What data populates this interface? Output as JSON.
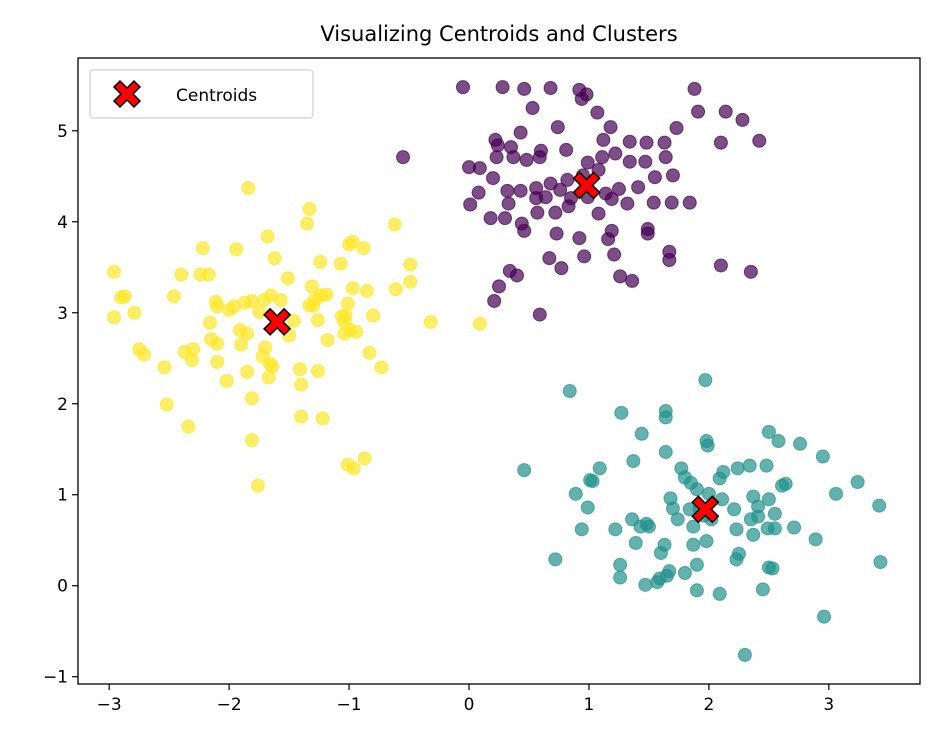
{
  "chart_data": {
    "type": "scatter",
    "title": "Visualizing Centroids and Clusters",
    "xlabel": "",
    "ylabel": "",
    "xlim": [
      -3.26,
      3.76
    ],
    "ylim": [
      -1.08,
      5.8
    ],
    "xticks": [
      -3,
      -2,
      -1,
      0,
      1,
      2,
      3
    ],
    "yticks": [
      -1,
      0,
      1,
      2,
      3,
      4,
      5
    ],
    "xtick_labels": [
      "−3",
      "−2",
      "−1",
      "0",
      "1",
      "2",
      "3"
    ],
    "ytick_labels": [
      "−1",
      "0",
      "1",
      "2",
      "3",
      "4",
      "5"
    ],
    "grid": false,
    "legend": {
      "position": "top-left",
      "entries": [
        "Centroids"
      ]
    },
    "colors": {
      "cluster_0": "#440154",
      "cluster_1": "#21918c",
      "cluster_2": "#fde725",
      "centroid": "#ff0000"
    },
    "point_alpha": 0.7,
    "series": [
      {
        "name": "cluster_0",
        "color": "#440154",
        "points": [
          [
            -0.05,
            5.48
          ],
          [
            0.28,
            5.48
          ],
          [
            0.68,
            5.47
          ],
          [
            0.92,
            5.45
          ],
          [
            0.46,
            5.46
          ],
          [
            0.98,
            5.4
          ],
          [
            1.88,
            5.46
          ],
          [
            0.94,
            5.35
          ],
          [
            0.53,
            5.25
          ],
          [
            1.07,
            5.2
          ],
          [
            1.91,
            5.21
          ],
          [
            2.14,
            5.21
          ],
          [
            2.28,
            5.12
          ],
          [
            1.18,
            5.04
          ],
          [
            0.74,
            5.04
          ],
          [
            0.43,
            4.98
          ],
          [
            0.22,
            4.9
          ],
          [
            0.24,
            4.84
          ],
          [
            0.35,
            4.82
          ],
          [
            0.6,
            4.78
          ],
          [
            1.12,
            4.9
          ],
          [
            1.34,
            4.88
          ],
          [
            1.48,
            4.87
          ],
          [
            1.63,
            4.87
          ],
          [
            2.42,
            4.89
          ],
          [
            2.1,
            4.87
          ],
          [
            1.73,
            5.03
          ],
          [
            -0.55,
            4.71
          ],
          [
            0.0,
            4.6
          ],
          [
            0.09,
            4.59
          ],
          [
            0.23,
            4.71
          ],
          [
            0.37,
            4.71
          ],
          [
            0.48,
            4.68
          ],
          [
            0.59,
            4.71
          ],
          [
            0.81,
            4.79
          ],
          [
            0.99,
            4.65
          ],
          [
            1.11,
            4.71
          ],
          [
            1.22,
            4.75
          ],
          [
            1.34,
            4.66
          ],
          [
            1.47,
            4.66
          ],
          [
            1.64,
            4.71
          ],
          [
            1.08,
            4.57
          ],
          [
            0.95,
            4.51
          ],
          [
            0.82,
            4.46
          ],
          [
            0.68,
            4.42
          ],
          [
            0.56,
            4.37
          ],
          [
            0.43,
            4.34
          ],
          [
            0.32,
            4.34
          ],
          [
            0.2,
            4.48
          ],
          [
            0.08,
            4.32
          ],
          [
            0.33,
            4.2
          ],
          [
            0.56,
            4.26
          ],
          [
            0.64,
            4.27
          ],
          [
            0.76,
            4.35
          ],
          [
            0.85,
            4.26
          ],
          [
            0.99,
            4.27
          ],
          [
            1.14,
            4.31
          ],
          [
            1.25,
            4.36
          ],
          [
            1.41,
            4.38
          ],
          [
            1.55,
            4.49
          ],
          [
            1.7,
            4.51
          ],
          [
            1.84,
            4.21
          ],
          [
            1.69,
            4.21
          ],
          [
            1.54,
            4.21
          ],
          [
            1.32,
            4.2
          ],
          [
            1.19,
            4.25
          ],
          [
            1.08,
            4.09
          ],
          [
            0.83,
            4.17
          ],
          [
            0.72,
            4.1
          ],
          [
            0.57,
            4.1
          ],
          [
            0.44,
            3.98
          ],
          [
            0.46,
            3.9
          ],
          [
            0.18,
            4.04
          ],
          [
            0.3,
            4.04
          ],
          [
            0.01,
            4.19
          ],
          [
            0.73,
            3.87
          ],
          [
            0.92,
            3.82
          ],
          [
            1.16,
            3.81
          ],
          [
            1.19,
            3.9
          ],
          [
            1.49,
            3.92
          ],
          [
            1.49,
            3.87
          ],
          [
            1.67,
            3.67
          ],
          [
            1.67,
            3.58
          ],
          [
            1.21,
            3.64
          ],
          [
            0.96,
            3.62
          ],
          [
            0.67,
            3.6
          ],
          [
            0.77,
            3.49
          ],
          [
            2.1,
            3.52
          ],
          [
            2.35,
            3.45
          ],
          [
            0.34,
            3.46
          ],
          [
            0.4,
            3.41
          ],
          [
            0.25,
            3.29
          ],
          [
            0.21,
            3.13
          ],
          [
            0.59,
            2.98
          ],
          [
            1.26,
            3.4
          ],
          [
            1.36,
            3.35
          ]
        ]
      },
      {
        "name": "cluster_1",
        "color": "#21918c",
        "points": [
          [
            0.84,
            2.14
          ],
          [
            1.97,
            2.26
          ],
          [
            1.27,
            1.9
          ],
          [
            1.64,
            1.92
          ],
          [
            1.64,
            1.85
          ],
          [
            1.98,
            1.59
          ],
          [
            1.99,
            1.54
          ],
          [
            2.5,
            1.69
          ],
          [
            2.58,
            1.59
          ],
          [
            2.76,
            1.56
          ],
          [
            2.95,
            1.42
          ],
          [
            3.24,
            1.14
          ],
          [
            3.42,
            0.88
          ],
          [
            3.06,
            1.01
          ],
          [
            0.46,
            1.27
          ],
          [
            1.44,
            1.67
          ],
          [
            1.37,
            1.37
          ],
          [
            1.64,
            1.47
          ],
          [
            1.09,
            1.29
          ],
          [
            1.01,
            1.16
          ],
          [
            0.89,
            1.01
          ],
          [
            0.99,
            0.86
          ],
          [
            1.03,
            1.15
          ],
          [
            0.94,
            0.62
          ],
          [
            0.72,
            0.29
          ],
          [
            1.22,
            0.62
          ],
          [
            1.36,
            0.73
          ],
          [
            1.39,
            0.47
          ],
          [
            1.48,
            0.68
          ],
          [
            1.5,
            0.65
          ],
          [
            1.77,
            1.29
          ],
          [
            1.8,
            1.19
          ],
          [
            1.85,
            1.13
          ],
          [
            1.9,
            1.06
          ],
          [
            2.09,
            1.18
          ],
          [
            2.12,
            1.25
          ],
          [
            2.24,
            1.29
          ],
          [
            2.34,
            1.32
          ],
          [
            2.48,
            1.32
          ],
          [
            2.61,
            1.1
          ],
          [
            2.64,
            1.12
          ],
          [
            2.37,
            0.98
          ],
          [
            2.41,
            0.87
          ],
          [
            2.41,
            0.76
          ],
          [
            2.35,
            0.73
          ],
          [
            2.5,
            0.95
          ],
          [
            2.55,
            0.79
          ],
          [
            2.49,
            0.63
          ],
          [
            2.55,
            0.63
          ],
          [
            2.71,
            0.64
          ],
          [
            2.89,
            0.51
          ],
          [
            2.0,
            1.01
          ],
          [
            1.92,
            0.85
          ],
          [
            1.96,
            0.77
          ],
          [
            2.02,
            0.73
          ],
          [
            2.11,
            0.95
          ],
          [
            2.21,
            0.84
          ],
          [
            2.23,
            0.62
          ],
          [
            2.25,
            0.35
          ],
          [
            2.23,
            0.29
          ],
          [
            2.37,
            0.56
          ],
          [
            2.5,
            0.2
          ],
          [
            2.53,
            0.19
          ],
          [
            2.45,
            -0.04
          ],
          [
            1.7,
            0.85
          ],
          [
            1.74,
            0.73
          ],
          [
            1.84,
            0.84
          ],
          [
            1.87,
            0.65
          ],
          [
            1.63,
            0.45
          ],
          [
            1.67,
            0.16
          ],
          [
            1.8,
            0.14
          ],
          [
            1.9,
            0.23
          ],
          [
            1.65,
            0.11
          ],
          [
            1.57,
            0.04
          ],
          [
            1.47,
            0.01
          ],
          [
            1.59,
            0.08
          ],
          [
            1.26,
            0.09
          ],
          [
            1.9,
            -0.05
          ],
          [
            2.09,
            -0.09
          ],
          [
            2.96,
            -0.34
          ],
          [
            3.43,
            0.26
          ],
          [
            2.3,
            -0.76
          ],
          [
            1.68,
            0.96
          ],
          [
            1.98,
            0.49
          ],
          [
            1.6,
            0.36
          ],
          [
            1.43,
            0.65
          ],
          [
            1.26,
            0.23
          ],
          [
            1.87,
            0.45
          ]
        ]
      },
      {
        "name": "cluster_2",
        "color": "#fde725",
        "points": [
          [
            -2.96,
            3.45
          ],
          [
            -2.9,
            3.17
          ],
          [
            -2.87,
            3.18
          ],
          [
            -2.79,
            3.0
          ],
          [
            -2.96,
            2.95
          ],
          [
            -2.4,
            3.42
          ],
          [
            -2.46,
            3.18
          ],
          [
            -2.75,
            2.6
          ],
          [
            -2.71,
            2.54
          ],
          [
            -2.54,
            2.4
          ],
          [
            -2.52,
            1.99
          ],
          [
            -2.34,
            1.75
          ],
          [
            -2.37,
            2.57
          ],
          [
            -2.31,
            2.48
          ],
          [
            -2.3,
            2.6
          ],
          [
            -2.24,
            3.42
          ],
          [
            -2.22,
            3.71
          ],
          [
            -2.17,
            3.42
          ],
          [
            -2.11,
            3.12
          ],
          [
            -2.1,
            3.07
          ],
          [
            -2.16,
            2.89
          ],
          [
            -2.15,
            2.71
          ],
          [
            -2.1,
            2.66
          ],
          [
            -2.1,
            2.46
          ],
          [
            -2.02,
            2.25
          ],
          [
            -2.0,
            3.03
          ],
          [
            -1.96,
            3.07
          ],
          [
            -1.94,
            3.7
          ],
          [
            -1.9,
            2.65
          ],
          [
            -1.91,
            2.81
          ],
          [
            -1.87,
            3.11
          ],
          [
            -1.84,
            4.37
          ],
          [
            -1.81,
            3.13
          ],
          [
            -1.85,
            2.77
          ],
          [
            -1.85,
            2.35
          ],
          [
            -1.81,
            2.06
          ],
          [
            -1.81,
            1.6
          ],
          [
            -1.76,
            1.1
          ],
          [
            -1.72,
            2.52
          ],
          [
            -1.75,
            3.01
          ],
          [
            -1.7,
            2.62
          ],
          [
            -1.68,
            3.84
          ],
          [
            -1.71,
            3.14
          ],
          [
            -1.66,
            2.44
          ],
          [
            -1.67,
            2.29
          ],
          [
            -1.64,
            2.41
          ],
          [
            -1.65,
            3.19
          ],
          [
            -1.62,
            3.6
          ],
          [
            -1.57,
            3.14
          ],
          [
            -1.51,
            3.38
          ],
          [
            -1.46,
            2.91
          ],
          [
            -1.5,
            2.75
          ],
          [
            -1.41,
            2.38
          ],
          [
            -1.4,
            2.21
          ],
          [
            -1.4,
            1.86
          ],
          [
            -1.33,
            3.08
          ],
          [
            -1.35,
            3.98
          ],
          [
            -1.33,
            4.14
          ],
          [
            -1.31,
            3.29
          ],
          [
            -1.28,
            3.15
          ],
          [
            -1.26,
            2.92
          ],
          [
            -1.3,
            3.08
          ],
          [
            -1.23,
            3.19
          ],
          [
            -1.26,
            2.36
          ],
          [
            -1.24,
            3.56
          ],
          [
            -1.22,
            1.84
          ],
          [
            -1.19,
            3.2
          ],
          [
            -1.18,
            2.7
          ],
          [
            -1.07,
            3.54
          ],
          [
            -1.06,
            2.96
          ],
          [
            -1.04,
            2.9
          ],
          [
            -1.04,
            2.77
          ],
          [
            -1.03,
            2.97
          ],
          [
            -1.01,
            3.1
          ],
          [
            -1.0,
            3.75
          ],
          [
            -0.97,
            3.78
          ],
          [
            -1.01,
            1.33
          ],
          [
            -0.96,
            1.29
          ],
          [
            -0.97,
            3.27
          ],
          [
            -0.94,
            2.79
          ],
          [
            -0.87,
            1.4
          ],
          [
            -0.88,
            3.71
          ],
          [
            -0.85,
            3.24
          ],
          [
            -0.83,
            2.56
          ],
          [
            -0.8,
            2.97
          ],
          [
            -0.73,
            2.4
          ],
          [
            -0.62,
            3.97
          ],
          [
            -0.61,
            3.26
          ],
          [
            -0.49,
            3.53
          ],
          [
            -0.49,
            3.34
          ],
          [
            -0.32,
            2.9
          ],
          [
            0.09,
            2.88
          ],
          [
            -0.99,
            2.81
          ]
        ]
      }
    ],
    "centroids": {
      "name": "Centroids",
      "points": [
        [
          0.98,
          4.4
        ],
        [
          1.97,
          0.84
        ],
        [
          -1.6,
          2.9
        ]
      ]
    }
  }
}
